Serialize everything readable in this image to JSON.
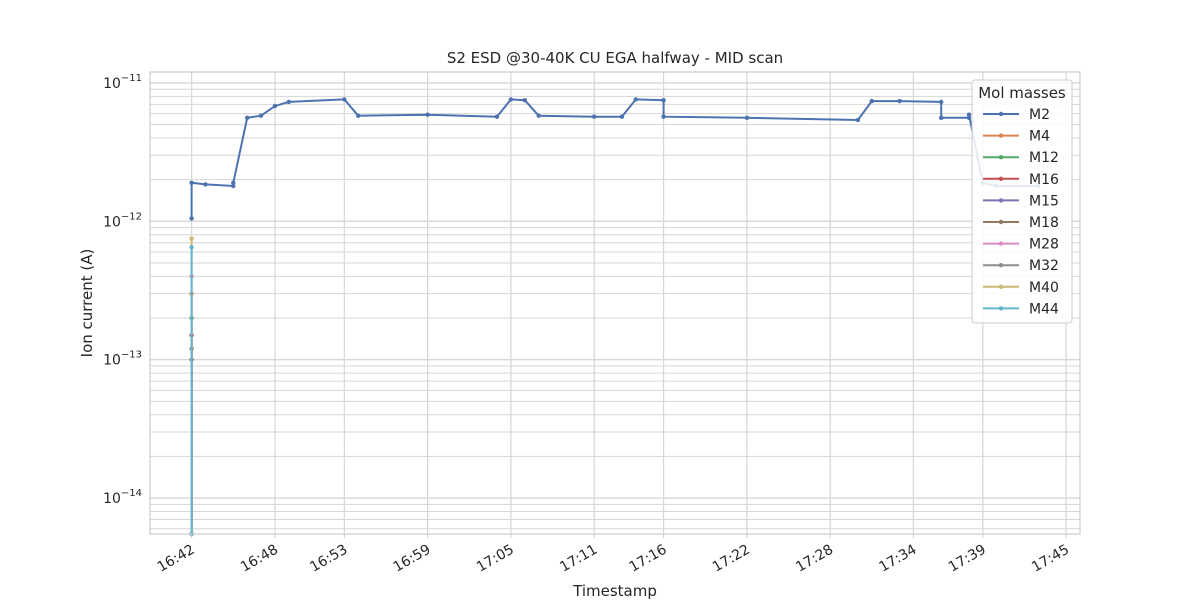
{
  "chart_data": {
    "type": "line",
    "title": "S2 ESD @30-40K CU EGA halfway - MID scan",
    "xlabel": "Timestamp",
    "ylabel": "Ion current (A)",
    "yscale": "log",
    "ylim": [
      5.5e-15,
      1.2e-11
    ],
    "yticks": [
      {
        "value": 1e-14,
        "base": "10",
        "exp": "−14"
      },
      {
        "value": 1e-13,
        "base": "10",
        "exp": "−13"
      },
      {
        "value": 1e-12,
        "base": "10",
        "exp": "−12"
      },
      {
        "value": 1e-11,
        "base": "10",
        "exp": "−11"
      }
    ],
    "xlim": [
      "16:39",
      "17:46"
    ],
    "xticks": [
      "16:42",
      "16:48",
      "16:53",
      "16:59",
      "17:05",
      "17:11",
      "17:16",
      "17:22",
      "17:28",
      "17:34",
      "17:39",
      "17:45"
    ],
    "grid": true,
    "legend": {
      "title": "Mol masses",
      "placement": "top-right"
    },
    "series": [
      {
        "name": "M2",
        "color": "#4c72b0",
        "x": [
          "16:42",
          "16:42",
          "16:43",
          "16:45",
          "16:45",
          "16:46",
          "16:47",
          "16:48",
          "16:49",
          "16:53",
          "16:54",
          "16:59",
          "17:04",
          "17:05",
          "17:06",
          "17:07",
          "17:11",
          "17:13",
          "17:14",
          "17:16",
          "17:16",
          "17:22",
          "17:30",
          "17:31",
          "17:33",
          "17:36",
          "17:36",
          "17:38",
          "17:38",
          "17:39",
          "17:40",
          "17:43"
        ],
        "y": [
          1.05e-12,
          1.9e-12,
          1.85e-12,
          1.8e-12,
          1.9e-12,
          5.6e-12,
          5.8e-12,
          6.8e-12,
          7.3e-12,
          7.6e-12,
          5.8e-12,
          5.9e-12,
          5.7e-12,
          7.6e-12,
          7.5e-12,
          5.8e-12,
          5.7e-12,
          5.7e-12,
          7.6e-12,
          7.5e-12,
          5.7e-12,
          5.6e-12,
          5.4e-12,
          7.4e-12,
          7.4e-12,
          7.3e-12,
          5.6e-12,
          5.6e-12,
          5.9e-12,
          1.9e-12,
          1.8e-12,
          1.8e-12
        ]
      },
      {
        "name": "M4",
        "color": "#dd8452",
        "x": [
          "16:42",
          "16:42"
        ],
        "y": [
          5.5e-15,
          3e-13
        ]
      },
      {
        "name": "M12",
        "color": "#55a868",
        "x": [
          "16:42",
          "16:42"
        ],
        "y": [
          5.5e-15,
          2e-13
        ]
      },
      {
        "name": "M16",
        "color": "#c44e52",
        "x": [
          "16:42",
          "16:42"
        ],
        "y": [
          5.5e-15,
          1.5e-13
        ]
      },
      {
        "name": "M15",
        "color": "#8172b3",
        "x": [
          "16:42",
          "16:42"
        ],
        "y": [
          5.5e-15,
          1e-13
        ]
      },
      {
        "name": "M18",
        "color": "#937860",
        "x": [
          "16:42",
          "16:42"
        ],
        "y": [
          5.5e-15,
          1.2e-13
        ]
      },
      {
        "name": "M28",
        "color": "#da8bc3",
        "x": [
          "16:42",
          "16:42"
        ],
        "y": [
          5.5e-15,
          4e-13
        ]
      },
      {
        "name": "M32",
        "color": "#8c8c8c",
        "x": [
          "16:42",
          "16:42"
        ],
        "y": [
          5.5e-15,
          1e-13
        ]
      },
      {
        "name": "M40",
        "color": "#ccb974",
        "x": [
          "16:42",
          "16:42"
        ],
        "y": [
          5.5e-15,
          7.5e-13
        ]
      },
      {
        "name": "M44",
        "color": "#64b5cd",
        "x": [
          "16:42",
          "16:42"
        ],
        "y": [
          5.5e-15,
          6.5e-13
        ]
      }
    ]
  }
}
